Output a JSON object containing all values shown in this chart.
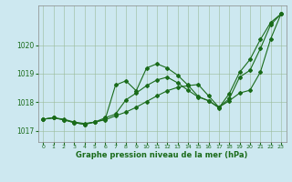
{
  "bg_color": "#cde8f0",
  "grid_color": "#99bb99",
  "line_color": "#1a6b1a",
  "xlabel": "Graphe pression niveau de la mer (hPa)",
  "xlabel_color": "#1a6b1a",
  "ylim": [
    1016.6,
    1021.4
  ],
  "xlim": [
    -0.5,
    23.5
  ],
  "yticks": [
    1017,
    1018,
    1019,
    1020
  ],
  "xticks": [
    0,
    1,
    2,
    3,
    4,
    5,
    6,
    7,
    8,
    9,
    10,
    11,
    12,
    13,
    14,
    15,
    16,
    17,
    18,
    19,
    20,
    21,
    22,
    23
  ],
  "s1": [
    1017.4,
    1017.45,
    1017.4,
    1017.3,
    1017.25,
    1017.3,
    1017.4,
    1018.6,
    1018.75,
    1018.4,
    1019.2,
    1019.35,
    1019.2,
    1018.95,
    1018.6,
    1018.2,
    1018.05,
    1017.8,
    1018.3,
    1019.05,
    1019.5,
    1020.2,
    1020.8,
    1021.1
  ],
  "s2": [
    1017.4,
    1017.45,
    1017.38,
    1017.28,
    1017.22,
    1017.3,
    1017.38,
    1017.52,
    1017.65,
    1017.82,
    1018.02,
    1018.22,
    1018.4,
    1018.52,
    1018.58,
    1018.62,
    1018.22,
    1017.82,
    1018.05,
    1018.32,
    1018.42,
    1019.05,
    1020.22,
    1021.1
  ],
  "s3": [
    1017.4,
    1017.45,
    1017.38,
    1017.28,
    1017.22,
    1017.3,
    1017.45,
    1017.58,
    1018.08,
    1018.32,
    1018.58,
    1018.78,
    1018.88,
    1018.68,
    1018.42,
    1018.18,
    1018.05,
    1017.82,
    1018.12,
    1018.88,
    1019.12,
    1019.88,
    1020.72,
    1021.1
  ]
}
